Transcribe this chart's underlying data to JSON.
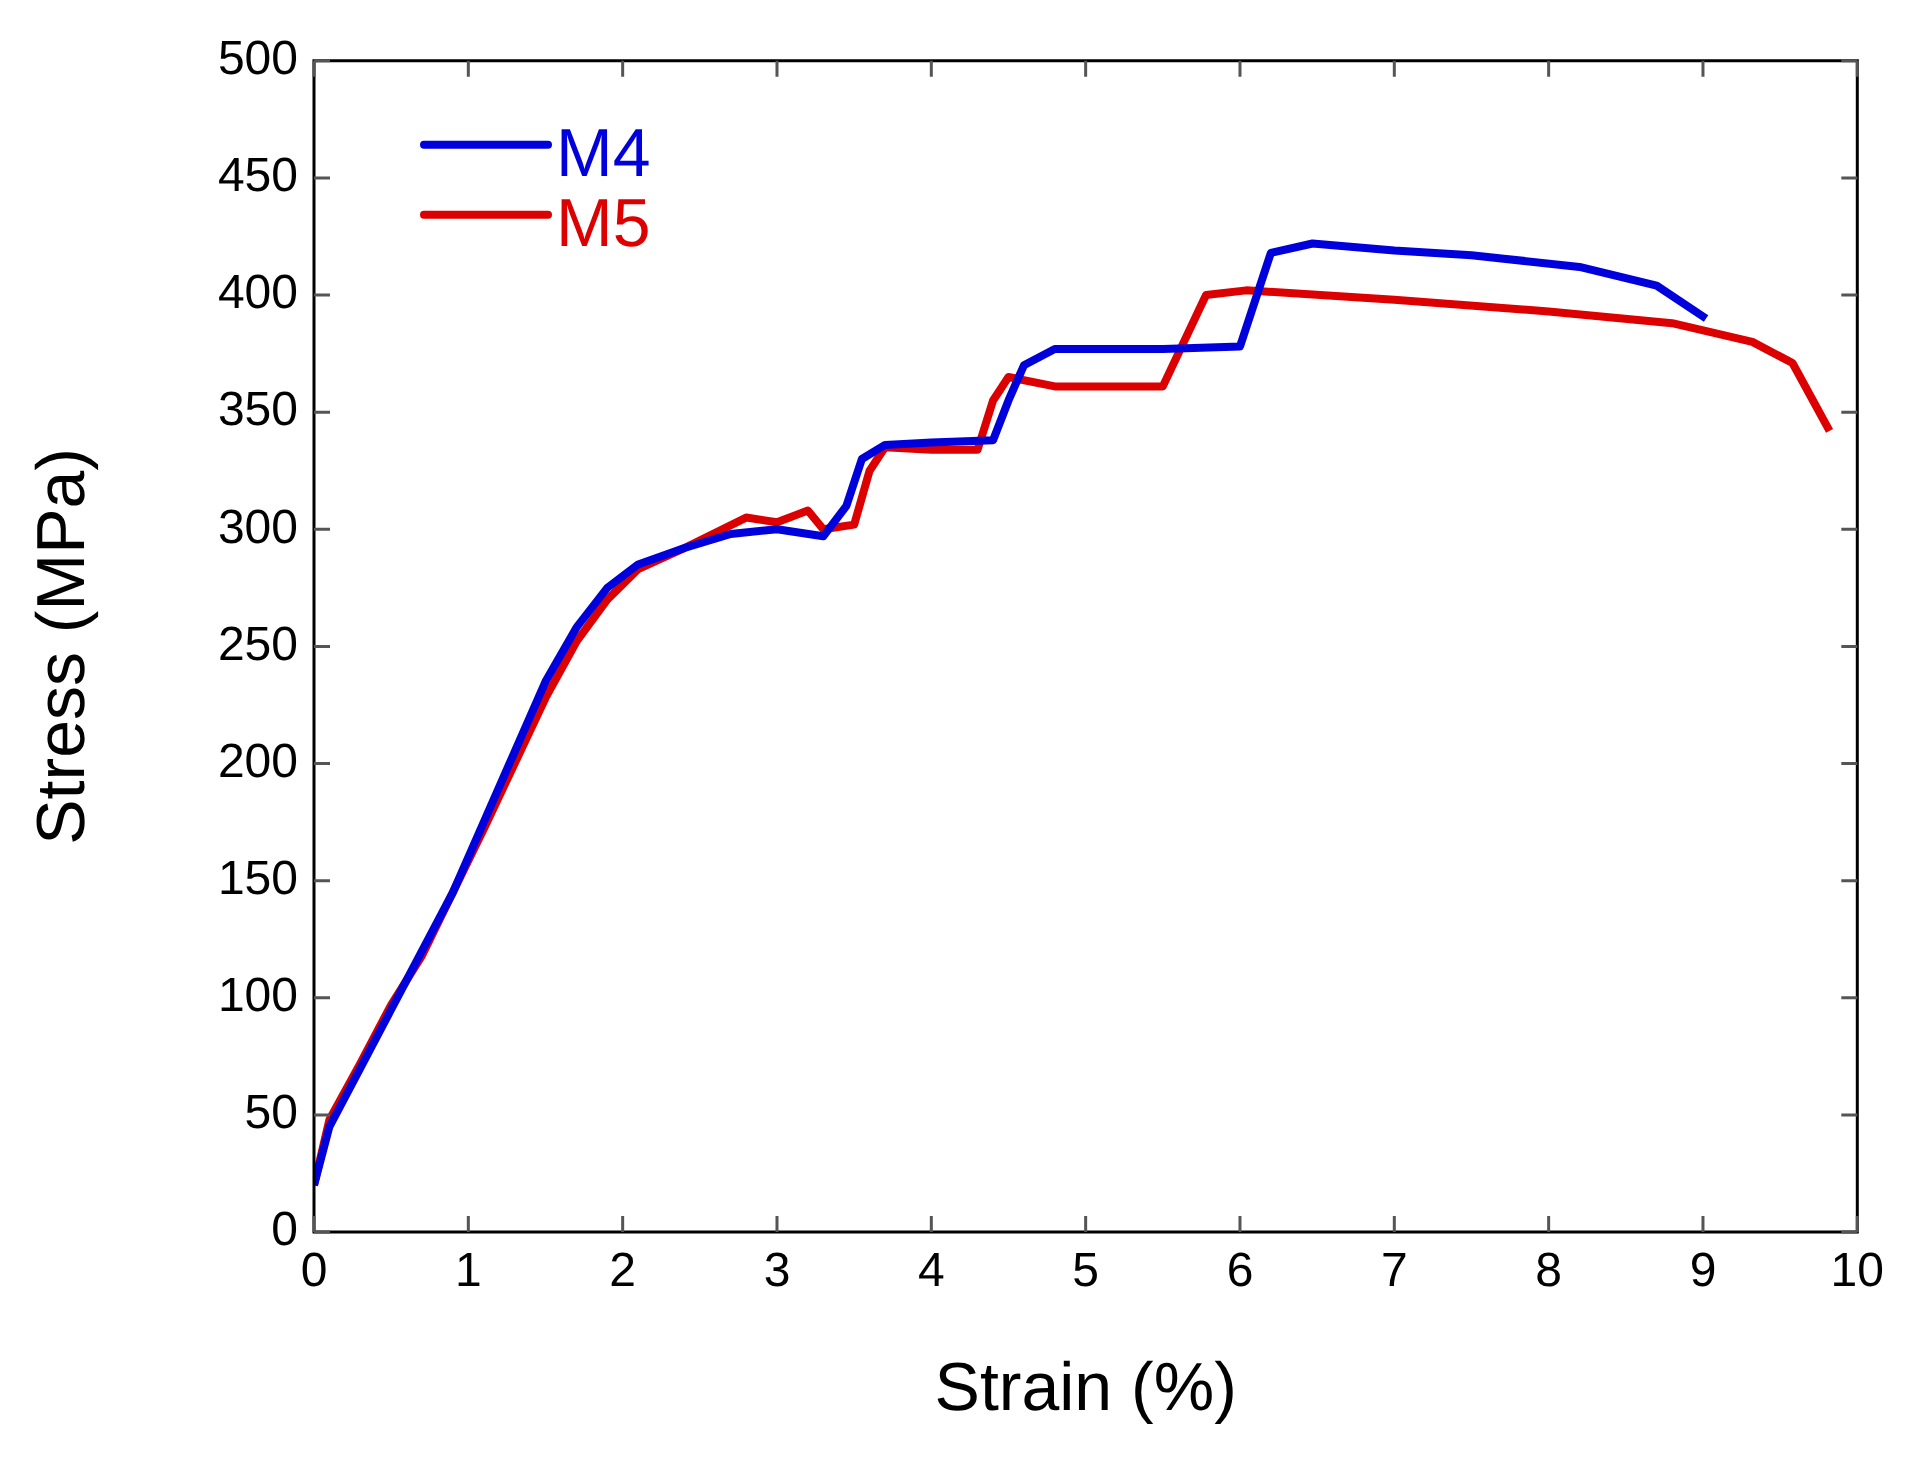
{
  "chart_data": {
    "type": "line",
    "xlabel": "Strain (%)",
    "ylabel": "Stress (MPa)",
    "xlim": [
      0,
      10
    ],
    "xticks": [
      0,
      1,
      2,
      3,
      4,
      5,
      6,
      7,
      8,
      9,
      10
    ],
    "ylim": [
      0,
      500
    ],
    "yticks": [
      0,
      50,
      100,
      150,
      200,
      250,
      300,
      350,
      400,
      450,
      500
    ],
    "grid": false,
    "legend": "top left",
    "marker": "none",
    "line_style": "solid",
    "series": [
      {
        "name": "M4",
        "color": "#0000dd",
        "x": [
          0,
          0.1,
          0.3,
          0.5,
          0.7,
          0.9,
          1.1,
          1.3,
          1.5,
          1.7,
          1.9,
          2.1,
          2.4,
          2.7,
          3.0,
          3.3,
          3.45,
          3.55,
          3.7,
          4.0,
          4.4,
          4.5,
          4.6,
          4.8,
          5.5,
          6.0,
          6.2,
          6.47,
          7.0,
          7.5,
          8.2,
          8.7,
          9.02
        ],
        "values": [
          20,
          45,
          70,
          95,
          120,
          145,
          175,
          205,
          235,
          258,
          275,
          285,
          292,
          298,
          300,
          297,
          310,
          330,
          336,
          337,
          338,
          355,
          370,
          377,
          377,
          378,
          418,
          422,
          419,
          417,
          412,
          404,
          390
        ]
      },
      {
        "name": "M5",
        "color": "#dd0000",
        "x": [
          0,
          0.1,
          0.3,
          0.5,
          0.7,
          0.9,
          1.1,
          1.3,
          1.5,
          1.7,
          1.9,
          2.1,
          2.4,
          2.8,
          3.0,
          3.2,
          3.3,
          3.5,
          3.6,
          3.7,
          4.0,
          4.3,
          4.4,
          4.5,
          4.8,
          5.5,
          5.78,
          6.04,
          7.0,
          8.0,
          8.8,
          9.32,
          9.58,
          9.82
        ],
        "values": [
          20,
          48,
          72,
          97,
          118,
          145,
          172,
          200,
          228,
          252,
          270,
          283,
          292,
          305,
          303,
          308,
          300,
          302,
          325,
          335,
          334,
          334,
          355,
          365,
          361,
          361,
          400,
          402,
          398,
          393,
          388,
          380,
          371,
          342
        ]
      }
    ]
  }
}
